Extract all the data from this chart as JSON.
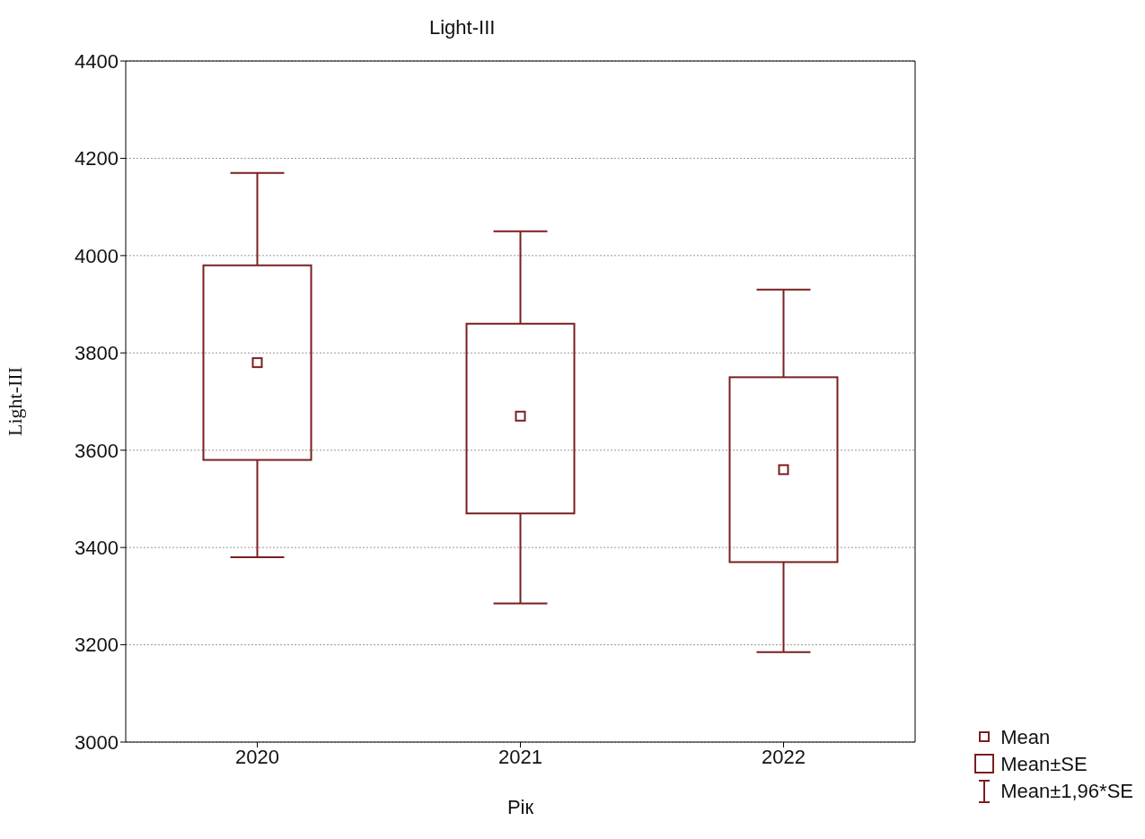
{
  "chart_data": {
    "type": "box",
    "title": "Light-III",
    "xlabel": "Рік",
    "ylabel": "Light-III",
    "categories": [
      "2020",
      "2021",
      "2022"
    ],
    "color": "#7b1f1f",
    "boxes": [
      {
        "low": 3380,
        "q1": 3580,
        "mean": 3780,
        "q3": 3980,
        "high": 4170
      },
      {
        "low": 3285,
        "q1": 3470,
        "mean": 3670,
        "q3": 3860,
        "high": 4050
      },
      {
        "low": 3185,
        "q1": 3370,
        "mean": 3560,
        "q3": 3750,
        "high": 3930
      }
    ],
    "ylim": [
      3000,
      4400
    ],
    "yticks": [
      3000,
      3200,
      3400,
      3600,
      3800,
      4000,
      4200,
      4400
    ],
    "grid": "y",
    "annotations": [
      "Mean",
      "Mean±SE",
      "Mean±1,96*SE"
    ]
  }
}
